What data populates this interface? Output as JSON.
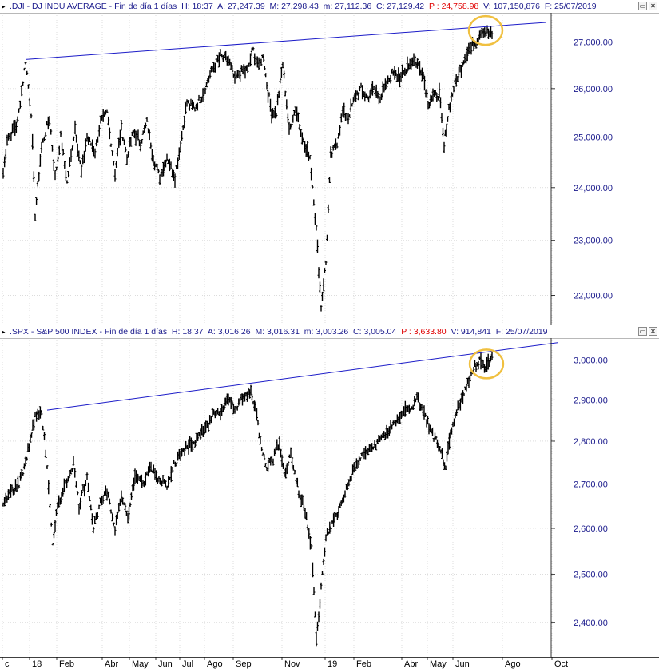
{
  "colors": {
    "trendline": "#1c1cc8",
    "highlight": "#f0c040",
    "price_label": "#1a1a8c",
    "bars": "#000000",
    "grid": "#c8c8c8",
    "red_value": "#e00000"
  },
  "chart_data": [
    {
      "type": "ohlc",
      "symbol": ".DJI",
      "header": {
        "name": ".DJI - DJ INDU AVERAGE - Fin de día 1 días",
        "h": "H: 18:37",
        "a": "A: 27,247.39",
        "m": "M: 27,298.43",
        "mn": "m: 27,112.36",
        "c": "C: 27,129.42",
        "p": "P : 24,758.98",
        "v": "V: 107,150,876",
        "f": "F: 25/07/2019"
      },
      "y_ticks": [
        "27,000.00",
        "26,000.00",
        "25,000.00",
        "24,000.00",
        "23,000.00",
        "22,000.00"
      ],
      "y_tick_values": [
        27000,
        26000,
        25000,
        24000,
        23000,
        22000
      ],
      "ylim": [
        21600,
        27500
      ],
      "log_scale": true,
      "grid": true,
      "path": [
        [
          0,
          24300
        ],
        [
          5,
          24950
        ],
        [
          18,
          25300
        ],
        [
          28,
          26600
        ],
        [
          35,
          25500
        ],
        [
          40,
          23500
        ],
        [
          48,
          24800
        ],
        [
          58,
          25400
        ],
        [
          65,
          24200
        ],
        [
          72,
          25000
        ],
        [
          80,
          24100
        ],
        [
          90,
          25200
        ],
        [
          98,
          24300
        ],
        [
          105,
          25000
        ],
        [
          115,
          24700
        ],
        [
          122,
          25300
        ],
        [
          130,
          25500
        ],
        [
          140,
          24300
        ],
        [
          148,
          25200
        ],
        [
          155,
          24600
        ],
        [
          163,
          25100
        ],
        [
          172,
          24900
        ],
        [
          180,
          25300
        ],
        [
          188,
          24600
        ],
        [
          196,
          24200
        ],
        [
          205,
          24600
        ],
        [
          215,
          24200
        ],
        [
          222,
          24900
        ],
        [
          230,
          25700
        ],
        [
          240,
          25600
        ],
        [
          250,
          25900
        ],
        [
          262,
          26400
        ],
        [
          272,
          26700
        ],
        [
          282,
          26600
        ],
        [
          290,
          26200
        ],
        [
          300,
          26400
        ],
        [
          306,
          26400
        ],
        [
          313,
          26800
        ],
        [
          320,
          26500
        ],
        [
          326,
          26700
        ],
        [
          330,
          26100
        ],
        [
          336,
          25500
        ],
        [
          342,
          25500
        ],
        [
          350,
          26500
        ],
        [
          358,
          25100
        ],
        [
          366,
          25600
        ],
        [
          376,
          24900
        ],
        [
          384,
          24600
        ],
        [
          392,
          23200
        ],
        [
          398,
          21800
        ],
        [
          404,
          22600
        ],
        [
          410,
          24600
        ],
        [
          418,
          24900
        ],
        [
          425,
          25500
        ],
        [
          432,
          25400
        ],
        [
          440,
          25800
        ],
        [
          448,
          26000
        ],
        [
          456,
          25800
        ],
        [
          464,
          26000
        ],
        [
          472,
          25800
        ],
        [
          480,
          26100
        ],
        [
          490,
          26400
        ],
        [
          498,
          26200
        ],
        [
          506,
          26500
        ],
        [
          514,
          26600
        ],
        [
          520,
          26500
        ],
        [
          526,
          26300
        ],
        [
          532,
          25700
        ],
        [
          538,
          25800
        ],
        [
          546,
          25900
        ],
        [
          552,
          24800
        ],
        [
          558,
          25600
        ],
        [
          564,
          26000
        ],
        [
          572,
          26400
        ],
        [
          578,
          26700
        ],
        [
          586,
          26900
        ],
        [
          592,
          27000
        ],
        [
          598,
          27250
        ],
        [
          606,
          27200
        ],
        [
          612,
          27130
        ]
      ],
      "trendline": {
        "from": [
          28,
          26620
        ],
        "to": [
          680,
          27430
        ]
      },
      "highlight_center": [
        604,
        27250
      ]
    },
    {
      "type": "ohlc",
      "symbol": ".SPX",
      "header": {
        "name": ".SPX - S&P 500 INDEX - Fin de día 1 días",
        "h": "H: 18:37",
        "a": "A: 3,016.26",
        "m": "M: 3,016.31",
        "mn": "m: 3,003.26",
        "c": "C: 3,005.04",
        "p": "P : 3,633.80",
        "v": "V: 914,841",
        "f": "F: 25/07/2019"
      },
      "y_ticks": [
        "3,000.00",
        "2,900.00",
        "2,800.00",
        "2,700.00",
        "2,600.00",
        "2,500.00",
        "2,400.00"
      ],
      "y_tick_values": [
        3000,
        2900,
        2800,
        2700,
        2600,
        2500,
        2400
      ],
      "ylim": [
        2340,
        3040
      ],
      "log_scale": true,
      "grid": true,
      "path": [
        [
          0,
          2650
        ],
        [
          8,
          2680
        ],
        [
          20,
          2700
        ],
        [
          28,
          2750
        ],
        [
          40,
          2860
        ],
        [
          48,
          2870
        ],
        [
          55,
          2740
        ],
        [
          62,
          2560
        ],
        [
          68,
          2650
        ],
        [
          78,
          2700
        ],
        [
          88,
          2750
        ],
        [
          95,
          2650
        ],
        [
          105,
          2720
        ],
        [
          113,
          2600
        ],
        [
          120,
          2650
        ],
        [
          130,
          2680
        ],
        [
          140,
          2600
        ],
        [
          148,
          2680
        ],
        [
          156,
          2620
        ],
        [
          165,
          2720
        ],
        [
          175,
          2700
        ],
        [
          185,
          2740
        ],
        [
          195,
          2710
        ],
        [
          205,
          2700
        ],
        [
          212,
          2740
        ],
        [
          222,
          2770
        ],
        [
          232,
          2790
        ],
        [
          242,
          2800
        ],
        [
          252,
          2830
        ],
        [
          262,
          2860
        ],
        [
          272,
          2870
        ],
        [
          282,
          2900
        ],
        [
          290,
          2880
        ],
        [
          298,
          2900
        ],
        [
          304,
          2910
        ],
        [
          310,
          2920
        ],
        [
          316,
          2880
        ],
        [
          322,
          2800
        ],
        [
          330,
          2740
        ],
        [
          338,
          2760
        ],
        [
          346,
          2800
        ],
        [
          352,
          2720
        ],
        [
          360,
          2770
        ],
        [
          370,
          2680
        ],
        [
          378,
          2640
        ],
        [
          386,
          2560
        ],
        [
          392,
          2360
        ],
        [
          398,
          2470
        ],
        [
          404,
          2580
        ],
        [
          412,
          2610
        ],
        [
          420,
          2640
        ],
        [
          428,
          2680
        ],
        [
          436,
          2720
        ],
        [
          444,
          2750
        ],
        [
          452,
          2770
        ],
        [
          460,
          2780
        ],
        [
          470,
          2800
        ],
        [
          480,
          2820
        ],
        [
          490,
          2840
        ],
        [
          500,
          2870
        ],
        [
          510,
          2880
        ],
        [
          518,
          2900
        ],
        [
          524,
          2880
        ],
        [
          530,
          2850
        ],
        [
          536,
          2820
        ],
        [
          542,
          2800
        ],
        [
          548,
          2770
        ],
        [
          554,
          2740
        ],
        [
          560,
          2810
        ],
        [
          566,
          2860
        ],
        [
          574,
          2900
        ],
        [
          580,
          2940
        ],
        [
          586,
          2960
        ],
        [
          592,
          2990
        ],
        [
          598,
          3000
        ],
        [
          604,
          2980
        ],
        [
          612,
          3010
        ]
      ],
      "trendline": {
        "from": [
          55,
          2875
        ],
        "to": [
          695,
          3045
        ]
      },
      "highlight_center": [
        605,
        2990
      ]
    }
  ],
  "x_axis": {
    "labels": [
      "c",
      "18",
      "Feb",
      "Abr",
      "May",
      "Jun",
      "Jul",
      "Ago",
      "Sep",
      "Nov",
      "19",
      "Feb",
      "Abr",
      "May",
      "Jun",
      "Ago",
      "Oct"
    ],
    "positions": [
      3,
      37,
      71,
      128,
      162,
      195,
      225,
      256,
      292,
      353,
      407,
      443,
      503,
      535,
      567,
      629,
      691
    ]
  },
  "window_buttons": {
    "restore": "▭",
    "close": "✕"
  }
}
